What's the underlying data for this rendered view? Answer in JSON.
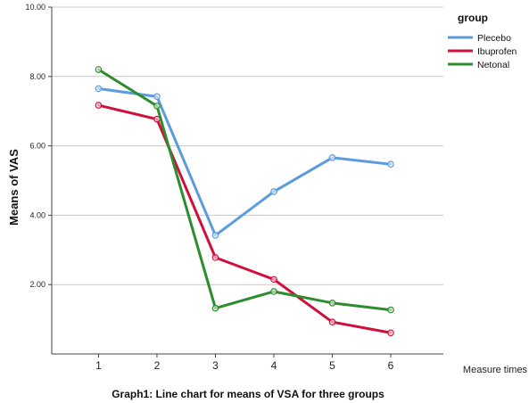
{
  "chart_data": {
    "type": "line",
    "title": "Graph1: Line chart for means of VSA for three groups",
    "xlabel": "Measure times",
    "ylabel": "Means of VAS",
    "x": [
      1,
      2,
      3,
      4,
      5,
      6
    ],
    "x_tick_labels": [
      "1",
      "2",
      "3",
      "4",
      "5",
      "6"
    ],
    "y_tick_labels": [
      "2.00",
      "4.00",
      "6.00",
      "8.00",
      "10.00"
    ],
    "ylim": [
      0,
      10
    ],
    "grid": "horizontal",
    "legend": {
      "title": "group",
      "placement": "top-right"
    },
    "series": [
      {
        "name": "Plecebo",
        "color": "#5b9bde",
        "values": [
          7.65,
          7.42,
          3.42,
          4.68,
          5.66,
          5.47
        ]
      },
      {
        "name": "Ibuprofen",
        "color": "#d0103a",
        "values": [
          7.17,
          6.77,
          2.78,
          2.15,
          0.92,
          0.61
        ]
      },
      {
        "name": "Netonal",
        "color": "#2e8b2e",
        "values": [
          8.2,
          7.15,
          1.32,
          1.8,
          1.47,
          1.27
        ]
      }
    ]
  }
}
